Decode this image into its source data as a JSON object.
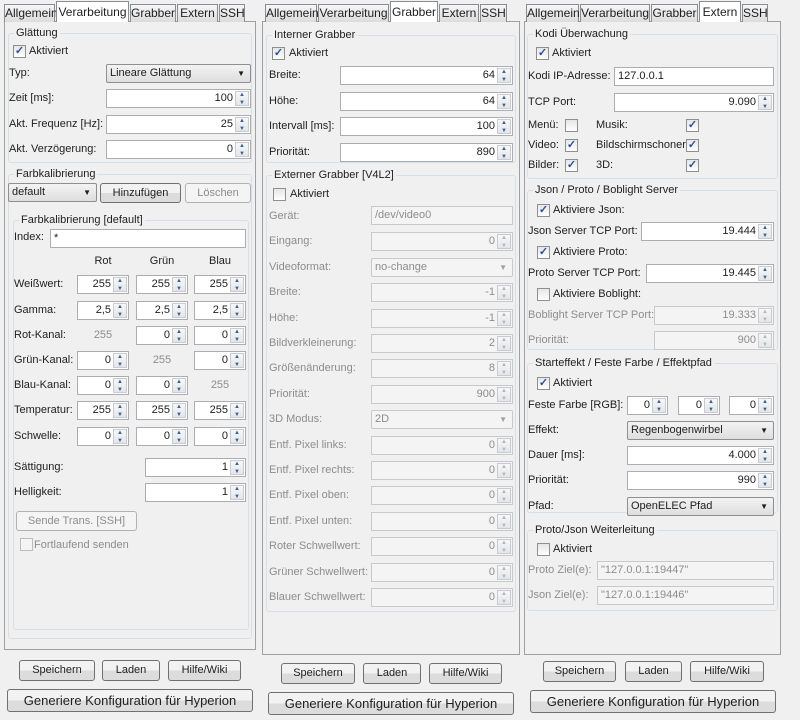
{
  "window_tabs": [
    "Allgemein",
    "Verarbeitung",
    "Grabber",
    "Extern",
    "SSH"
  ],
  "footer": {
    "save": "Speichern",
    "load": "Laden",
    "help": "Hilfe/Wiki",
    "generate": "Generiere Konfiguration für Hyperion"
  },
  "p1": {
    "active_tab": "Verarbeitung",
    "smoothing": {
      "title": "Glättung",
      "enabled_label": "Aktiviert",
      "enabled": true,
      "type_label": "Typ:",
      "type_value": "Lineare Glättung",
      "time_label": "Zeit [ms]:",
      "time_value": "100",
      "freq_label": "Akt. Frequenz [Hz]:",
      "freq_value": "25",
      "delay_label": "Akt. Verzögerung:",
      "delay_value": "0"
    },
    "calib": {
      "title": "Farbkalibrierung",
      "profile": "default",
      "add": "Hinzufügen",
      "delete": "Löschen",
      "sub_title": "Farbkalibrierung [default]",
      "index_label": "Index:",
      "index_value": "*",
      "columns": [
        "Rot",
        "Grün",
        "Blau"
      ],
      "rows": [
        {
          "label": "Weißwert:",
          "values": [
            "255",
            "255",
            "255"
          ]
        },
        {
          "label": "Gamma:",
          "values": [
            "2,5",
            "2,5",
            "2,5"
          ]
        },
        {
          "label": "Rot-Kanal:",
          "values": [
            "255",
            "0",
            "0"
          ],
          "static_col": 0
        },
        {
          "label": "Grün-Kanal:",
          "values": [
            "0",
            "255",
            "0"
          ],
          "static_col": 1
        },
        {
          "label": "Blau-Kanal:",
          "values": [
            "0",
            "0",
            "255"
          ],
          "static_col": 2
        },
        {
          "label": "Temperatur:",
          "values": [
            "255",
            "255",
            "255"
          ]
        },
        {
          "label": "Schwelle:",
          "values": [
            "0",
            "0",
            "0"
          ]
        }
      ],
      "saturation_label": "Sättigung:",
      "saturation": "1",
      "brightness_label": "Helligkeit:",
      "brightness": "1",
      "send_trans": "Sende Trans. [SSH]",
      "continuous": "Fortlaufend senden",
      "continuous_checked": false
    }
  },
  "p2": {
    "active_tab": "Grabber",
    "internal": {
      "title": "Interner Grabber",
      "enabled_label": "Aktiviert",
      "enabled": true,
      "fields": [
        {
          "label": "Breite:",
          "value": "64"
        },
        {
          "label": "Höhe:",
          "value": "64"
        },
        {
          "label": "Intervall [ms]:",
          "value": "100"
        },
        {
          "label": "Priorität:",
          "value": "890"
        }
      ]
    },
    "external": {
      "title": "Externer Grabber [V4L2]",
      "enabled_label": "Aktiviert",
      "enabled": false,
      "fields": [
        {
          "label": "Gerät:",
          "value": "/dev/video0",
          "kind": "text"
        },
        {
          "label": "Eingang:",
          "value": "0",
          "kind": "spin"
        },
        {
          "label": "Videoformat:",
          "value": "no-change",
          "kind": "combo"
        },
        {
          "label": "Breite:",
          "value": "-1",
          "kind": "spin"
        },
        {
          "label": "Höhe:",
          "value": "-1",
          "kind": "spin"
        },
        {
          "label": "Bildverkleinerung:",
          "value": "2",
          "kind": "spin"
        },
        {
          "label": "Größenänderung:",
          "value": "8",
          "kind": "spin"
        },
        {
          "label": "Priorität:",
          "value": "900",
          "kind": "spin"
        },
        {
          "label": "3D Modus:",
          "value": "2D",
          "kind": "combo"
        },
        {
          "label": "Entf. Pixel links:",
          "value": "0",
          "kind": "spin"
        },
        {
          "label": "Entf. Pixel rechts:",
          "value": "0",
          "kind": "spin"
        },
        {
          "label": "Entf. Pixel oben:",
          "value": "0",
          "kind": "spin"
        },
        {
          "label": "Entf. Pixel unten:",
          "value": "0",
          "kind": "spin"
        },
        {
          "label": "Roter Schwellwert:",
          "value": "0",
          "kind": "spin"
        },
        {
          "label": "Grüner Schwellwert:",
          "value": "0",
          "kind": "spin"
        },
        {
          "label": "Blauer Schwellwert:",
          "value": "0",
          "kind": "spin"
        }
      ]
    }
  },
  "p3": {
    "active_tab": "Extern",
    "kodi": {
      "title": "Kodi Überwachung",
      "enabled_label": "Aktiviert",
      "enabled": true,
      "ip_label": "Kodi IP-Adresse:",
      "ip": "127.0.0.1",
      "port_label": "TCP Port:",
      "port": "9.090",
      "menu_label": "Menü:",
      "menu": false,
      "music_label": "Musik:",
      "music": true,
      "video_label": "Video:",
      "video": true,
      "screensaver_label": "Bildschirmschoner:",
      "screensaver": true,
      "pictures_label": "Bilder:",
      "pictures": true,
      "threed_label": "3D:",
      "threed": true
    },
    "server": {
      "title": "Json / Proto / Boblight Server",
      "json_enable_label": "Aktiviere Json:",
      "json_enable": true,
      "json_port_label": "Json Server TCP Port:",
      "json_port": "19.444",
      "proto_enable_label": "Aktiviere Proto:",
      "proto_enable": true,
      "proto_port_label": "Proto Server TCP Port:",
      "proto_port": "19.445",
      "boblight_enable_label": "Aktiviere Boblight:",
      "boblight_enable": false,
      "boblight_port_label": "Boblight Server TCP Port:",
      "boblight_port": "19.333",
      "priority_label": "Priorität:",
      "priority": "900"
    },
    "start": {
      "title": "Starteffekt / Feste Farbe / Effektpfad",
      "enabled_label": "Aktiviert",
      "enabled": true,
      "color_label": "Feste Farbe [RGB]:",
      "color": [
        "0",
        "0",
        "0"
      ],
      "effect_label": "Effekt:",
      "effect": "Regenbogenwirbel",
      "duration_label": "Dauer [ms]:",
      "duration": "4.000",
      "priority_label": "Priorität:",
      "priority": "990",
      "path_label": "Pfad:",
      "path": "OpenELEC Pfad"
    },
    "forward": {
      "title": "Proto/Json Weiterleitung",
      "enabled_label": "Aktiviert",
      "enabled": false,
      "proto_label": "Proto Ziel(e):",
      "proto": "\"127.0.0.1:19447\"",
      "json_label": "Json Ziel(e):",
      "json": "\"127.0.0.1:19446\""
    }
  }
}
